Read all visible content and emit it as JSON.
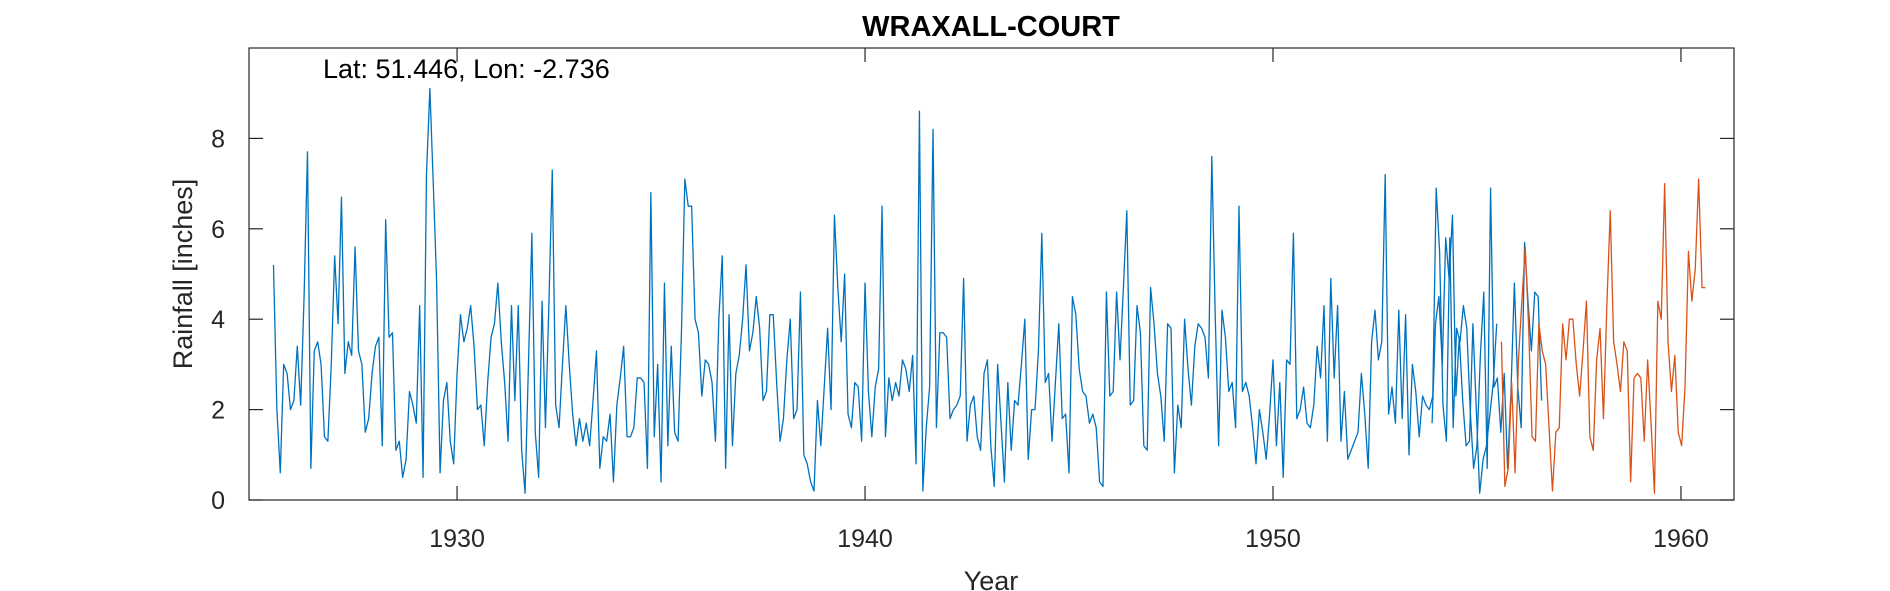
{
  "chart_data": {
    "type": "line",
    "title": "WRAXALL-COURT",
    "xlabel": "Year",
    "ylabel": "Rainfall [inches]",
    "annotation": "Lat: 51.446, Lon: -2.736",
    "xlim": [
      1924.9,
      1961.3
    ],
    "ylim": [
      0,
      10
    ],
    "xticks": [
      1930,
      1940,
      1950,
      1960
    ],
    "yticks": [
      0,
      2,
      4,
      6,
      8
    ],
    "grid": false,
    "legend": "none",
    "series": [
      {
        "color": "#0072BD",
        "start": 1925.5,
        "step": 0.0833333,
        "values": [
          5.2,
          2.0,
          0.6,
          3.0,
          2.8,
          2.0,
          2.2,
          3.4,
          2.1,
          4.5,
          7.7,
          0.7,
          3.3,
          3.5,
          3.0,
          1.4,
          1.3,
          3.0,
          5.4,
          3.9,
          6.7,
          2.8,
          3.5,
          3.2,
          5.6,
          3.3,
          3.0,
          1.5,
          1.8,
          2.8,
          3.4,
          3.6,
          1.2,
          6.2,
          3.6,
          3.7,
          1.1,
          1.3,
          0.5,
          0.9,
          2.4,
          2.1,
          1.7,
          4.3,
          0.5,
          7.2,
          9.1,
          7.0,
          4.8,
          0.6,
          2.2,
          2.6,
          1.3,
          0.8,
          2.8,
          4.1,
          3.5,
          3.8,
          4.3,
          3.4,
          2.0,
          2.1,
          1.2,
          2.6,
          3.6,
          3.9,
          4.8,
          3.5,
          2.6,
          1.3,
          4.3,
          2.2,
          4.3,
          1.1,
          0.15,
          3.0,
          5.9,
          1.5,
          0.5,
          4.4,
          1.6,
          4.3,
          7.3,
          2.1,
          1.6,
          3.0,
          4.3,
          3.0,
          1.9,
          1.2,
          1.8,
          1.3,
          1.7,
          1.2,
          2.2,
          3.3,
          0.7,
          1.4,
          1.3,
          1.9,
          0.4,
          2.1,
          2.7,
          3.4,
          1.4,
          1.4,
          1.6,
          2.7,
          2.7,
          2.6,
          0.7,
          6.8,
          1.4,
          3.0,
          0.4,
          4.8,
          1.2,
          3.4,
          1.5,
          1.3,
          3.7,
          7.1,
          6.5,
          6.5,
          4.0,
          3.7,
          2.3,
          3.1,
          3.0,
          2.6,
          1.3,
          4.0,
          5.4,
          0.7,
          4.1,
          1.2,
          2.8,
          3.2,
          4.0,
          5.2,
          3.3,
          3.7,
          4.5,
          3.8,
          2.2,
          2.4,
          4.1,
          4.1,
          2.6,
          1.3,
          1.8,
          3.1,
          4.0,
          1.8,
          2.0,
          4.6,
          1.0,
          0.8,
          0.4,
          0.2,
          2.2,
          1.2,
          2.5,
          3.8,
          2.0,
          6.3,
          4.7,
          3.5,
          5.0,
          1.9,
          1.6,
          2.6,
          2.5,
          1.3,
          4.8,
          2.4,
          1.4,
          2.5,
          2.9,
          6.5,
          1.4,
          2.7,
          2.2,
          2.6,
          2.3,
          3.1,
          2.9,
          2.4,
          3.2,
          0.8,
          8.6,
          0.2,
          1.6,
          2.5,
          8.2,
          1.6,
          3.7,
          3.7,
          3.6,
          1.8,
          2.0,
          2.1,
          2.3,
          4.9,
          1.3,
          2.1,
          2.3,
          1.4,
          1.1,
          2.8,
          3.1,
          1.2,
          0.3,
          3.0,
          1.7,
          0.4,
          2.6,
          1.1,
          2.2,
          2.1,
          3.0,
          4.0,
          0.9,
          2.0,
          2.0,
          3.3,
          5.9,
          2.6,
          2.8,
          1.3,
          2.6,
          3.9,
          1.8,
          1.9,
          0.6,
          4.5,
          4.1,
          2.9,
          2.4,
          2.3,
          1.7,
          1.9,
          1.6,
          0.4,
          0.3,
          4.6,
          2.3,
          2.4,
          4.6,
          3.1,
          4.7,
          6.4,
          2.1,
          2.2,
          4.3,
          3.7,
          1.2,
          1.1,
          4.7,
          3.9,
          2.8,
          2.3,
          1.3,
          3.9,
          3.8,
          0.6,
          2.1,
          1.6,
          4.0,
          2.9,
          2.1,
          3.4,
          3.9,
          3.8,
          3.6,
          2.7,
          7.6,
          4.1,
          1.2,
          4.2,
          3.6,
          2.4,
          2.6,
          1.6,
          6.5,
          2.4,
          2.6,
          2.3,
          1.6,
          0.8,
          2.0,
          1.5,
          0.9,
          1.9,
          3.1,
          1.2,
          2.6,
          0.5,
          3.1,
          3.0,
          5.9,
          1.8,
          2.0,
          2.5,
          1.7,
          1.6,
          2.1,
          3.4,
          2.7,
          4.3,
          1.3,
          4.9,
          2.7,
          4.3,
          1.3,
          2.4,
          0.9,
          1.1,
          1.3,
          1.5,
          2.8,
          1.9,
          0.7,
          3.5,
          4.2,
          3.1,
          3.5,
          7.2,
          1.9,
          2.5,
          1.7,
          4.2,
          1.8,
          4.1,
          1.0,
          3.0,
          2.4,
          1.4,
          2.3,
          2.1,
          2.0,
          2.3,
          6.9,
          5.5,
          2.1,
          1.3,
          5.8,
          1.6,
          3.8,
          3.5,
          4.3,
          3.8,
          2.0,
          0.7,
          1.2,
          3.2,
          4.6,
          0.7,
          6.9,
          2.5,
          2.7,
          1.5,
          2.8,
          0.7,
          2.4,
          4.8,
          2.5,
          1.6,
          5.7,
          4.4,
          3.3,
          4.6,
          4.5,
          2.2
        ]
      },
      {
        "color": "#0072BD",
        "start": 1953.9,
        "step": 0.0833333,
        "values": [
          1.7,
          3.9,
          4.5,
          3.0,
          5.8,
          4.9,
          6.3,
          2.3,
          3.6,
          2.2,
          1.2,
          1.3,
          3.9,
          2.0,
          0.15,
          0.9,
          1.2,
          1.9,
          2.6,
          3.9
        ]
      },
      {
        "color": "#D95319",
        "start": 1955.6,
        "step": 0.0833333,
        "values": [
          3.5,
          0.3,
          0.7,
          2.6,
          0.6,
          3.1,
          4.4,
          5.6,
          3.8,
          1.4,
          1.3,
          3.9,
          3.3,
          3.0,
          1.6,
          0.2,
          1.5,
          1.6,
          3.9,
          3.1,
          4.0,
          4.0,
          3.0,
          2.3,
          3.3,
          4.4,
          1.4,
          1.1,
          3.1,
          3.8,
          1.8,
          4.3,
          6.4,
          3.5,
          3.0,
          2.4,
          3.5,
          3.3,
          0.4,
          2.7,
          2.8,
          2.7,
          1.3,
          3.1,
          1.7,
          0.15,
          4.4,
          4.0,
          7.0,
          3.5,
          2.4,
          3.2,
          1.5,
          1.2,
          2.5,
          5.5,
          4.4,
          5.1,
          7.1,
          4.7,
          4.7
        ]
      }
    ]
  }
}
